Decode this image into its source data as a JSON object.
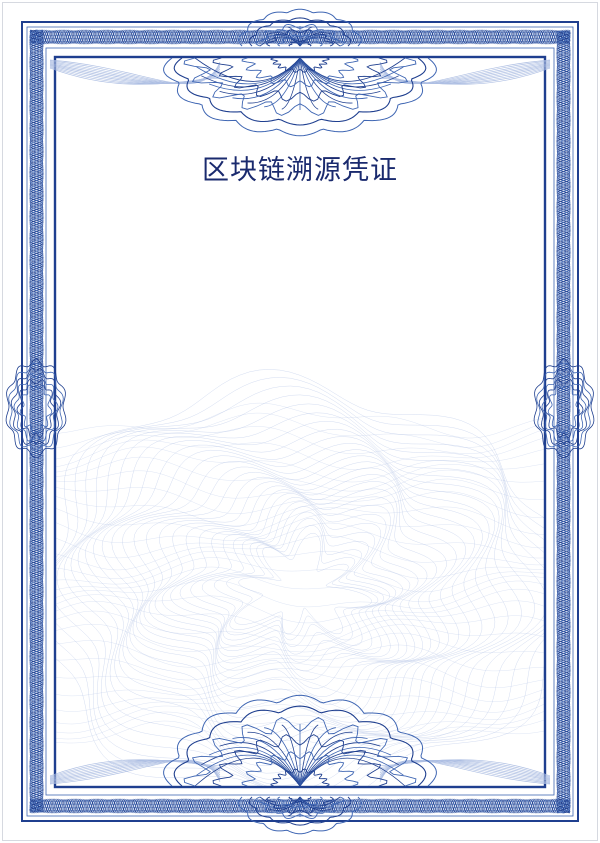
{
  "certificate": {
    "title": "区块链溯源凭证"
  },
  "colors": {
    "frame_dark": "#1f3f8f",
    "frame_mid": "#3f66b3",
    "pattern_light": "#aebfe3",
    "title_text": "#1a2a6e",
    "background": "#ffffff"
  },
  "icons": {
    "top_ornament": "guilloche-rosette-icon",
    "bottom_ornament": "guilloche-rosette-icon",
    "side_ornaments": "guilloche-medallion-icon",
    "watermark": "guilloche-watermark-icon"
  }
}
